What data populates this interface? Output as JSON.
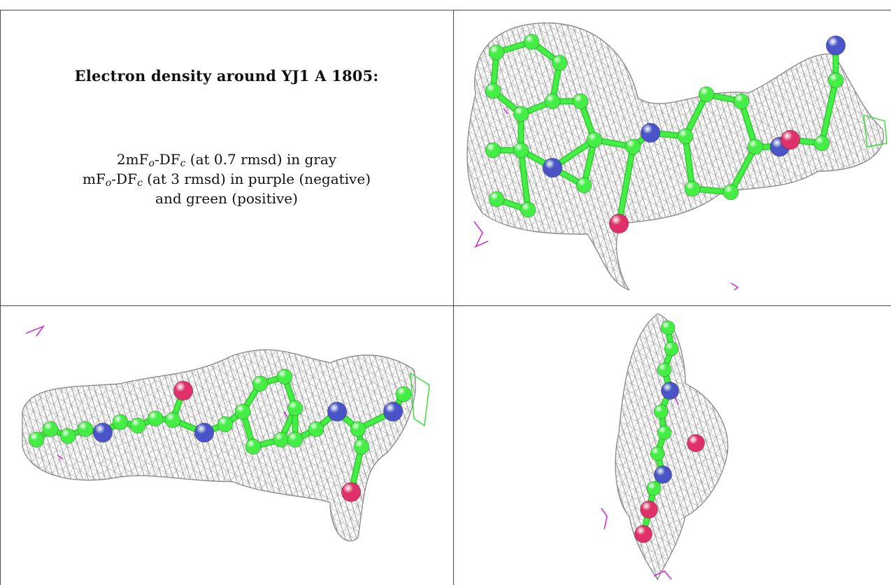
{
  "caption": {
    "title": "Electron density around YJ1 A 1805:",
    "line1": {
      "prefix": "2mF",
      "sub1": "o",
      "mid": "-DF",
      "sub2": "c",
      "suffix": " (at 0.7 rmsd) in gray"
    },
    "line2": {
      "prefix": "mF",
      "sub1": "o",
      "mid": "-DF",
      "sub2": "c",
      "suffix": " (at 3 rmsd) in purple (negative)"
    },
    "line3": "and green (positive)"
  },
  "colors": {
    "carbon": "#44ee44",
    "nitrogen": "#4a54c8",
    "oxygen": "#e0306a",
    "mesh_gray": "#9a9a9a",
    "mesh_negative": "#cc33cc",
    "mesh_positive": "#33dd33",
    "grid": "#4a4a4a"
  },
  "views": [
    {
      "name": "view-top-right"
    },
    {
      "name": "view-bottom-left"
    },
    {
      "name": "view-bottom-right"
    }
  ]
}
